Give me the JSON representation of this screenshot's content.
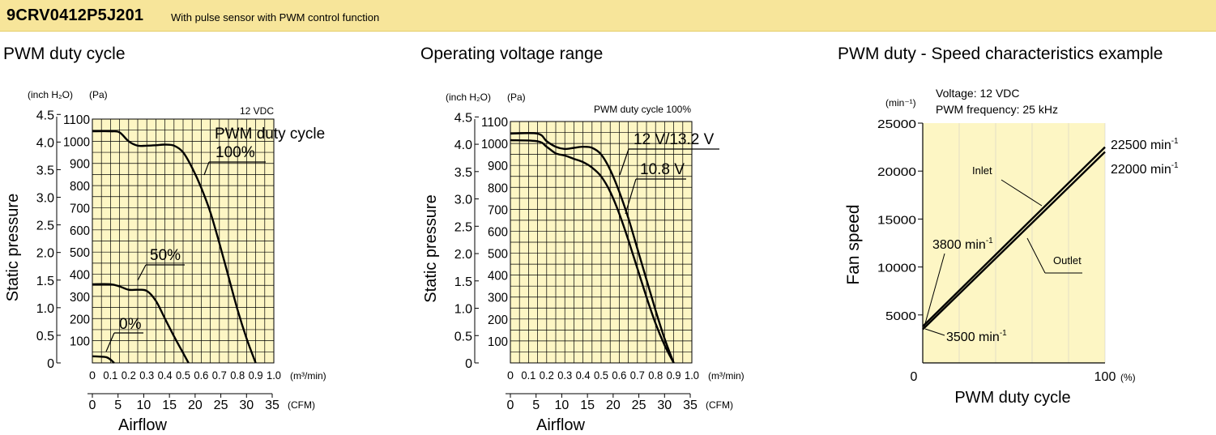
{
  "header": {
    "model": "9CRV0412P5J201",
    "description": "With pulse sensor with PWM control function",
    "background_color": "#f7e59a"
  },
  "sections": {
    "duty_cycle_title": "PWM duty cycle",
    "voltage_title": "Operating voltage range",
    "speed_title": "PWM duty - Speed characteristics example"
  },
  "chart_data": [
    {
      "type": "line",
      "title": "PWM duty cycle",
      "condition": "12 VDC",
      "ylabel": "Static pressure",
      "ylabel_unit_inch": "(inch H₂O)",
      "ylabel_unit_pa": "(Pa)",
      "xlabel": "Airflow",
      "x_unit_m3": "(m³/min)",
      "x_unit_cfm": "(CFM)",
      "xlim": [
        0,
        1.0
      ],
      "ylim": [
        0,
        1100
      ],
      "y_ticks_pa": [
        "100",
        "200",
        "300",
        "400",
        "500",
        "600",
        "700",
        "800",
        "900",
        "1000",
        "1100"
      ],
      "y_ticks_inch": [
        "0",
        "0.5",
        "1.0",
        "1.5",
        "2.0",
        "2.5",
        "3.0",
        "3.5",
        "4.0",
        "4.5"
      ],
      "x_ticks_m3": [
        "0",
        "0.1",
        "0.2",
        "0.3",
        "0.4",
        "0.5",
        "0.6",
        "0.7",
        "0.8",
        "0.9",
        "1.0"
      ],
      "x_ticks_cfm": [
        "0",
        "5",
        "10",
        "15",
        "20",
        "25",
        "30",
        "35"
      ],
      "legend_title": "PWM duty cycle",
      "series": [
        {
          "name": "100%",
          "x": [
            0,
            0.1,
            0.15,
            0.2,
            0.25,
            0.3,
            0.35,
            0.4,
            0.45,
            0.5,
            0.55,
            0.6,
            0.65,
            0.7,
            0.75,
            0.8,
            0.85,
            0.9
          ],
          "y": [
            1045,
            1045,
            1040,
            1000,
            980,
            980,
            982,
            985,
            980,
            950,
            880,
            790,
            680,
            540,
            390,
            240,
            110,
            0
          ]
        },
        {
          "name": "50%",
          "x": [
            0,
            0.1,
            0.15,
            0.2,
            0.25,
            0.3,
            0.35,
            0.4,
            0.45,
            0.5,
            0.53
          ],
          "y": [
            355,
            355,
            345,
            330,
            330,
            325,
            280,
            200,
            120,
            45,
            0
          ]
        },
        {
          "name": "0%",
          "x": [
            0,
            0.05,
            0.08,
            0.1,
            0.12
          ],
          "y": [
            30,
            28,
            25,
            15,
            0
          ]
        }
      ]
    },
    {
      "type": "line",
      "title": "Operating voltage range",
      "condition": "PWM duty cycle 100%",
      "ylabel": "Static pressure",
      "ylabel_unit_inch": "(inch H₂O)",
      "ylabel_unit_pa": "(Pa)",
      "xlabel": "Airflow",
      "x_unit_m3": "(m³/min)",
      "x_unit_cfm": "(CFM)",
      "xlim": [
        0,
        1.0
      ],
      "ylim": [
        0,
        1100
      ],
      "y_ticks_pa": [
        "100",
        "200",
        "300",
        "400",
        "500",
        "600",
        "700",
        "800",
        "900",
        "1000",
        "1100"
      ],
      "y_ticks_inch": [
        "0",
        "0.5",
        "1.0",
        "1.5",
        "2.0",
        "2.5",
        "3.0",
        "3.5",
        "4.0",
        "4.5"
      ],
      "x_ticks_m3": [
        "0",
        "0.1",
        "0.2",
        "0.3",
        "0.4",
        "0.5",
        "0.6",
        "0.7",
        "0.8",
        "0.9",
        "1.0"
      ],
      "x_ticks_cfm": [
        "0",
        "5",
        "10",
        "15",
        "20",
        "25",
        "30",
        "35"
      ],
      "series": [
        {
          "name": "12 V/13.2 V",
          "x": [
            0,
            0.15,
            0.2,
            0.25,
            0.3,
            0.35,
            0.4,
            0.45,
            0.5,
            0.55,
            0.6,
            0.65,
            0.7,
            0.75,
            0.8,
            0.85,
            0.9
          ],
          "y": [
            1045,
            1045,
            1010,
            985,
            975,
            980,
            985,
            980,
            950,
            880,
            780,
            660,
            520,
            380,
            240,
            110,
            0
          ]
        },
        {
          "name": "10.8 V",
          "x": [
            0,
            0.15,
            0.2,
            0.25,
            0.3,
            0.35,
            0.4,
            0.45,
            0.5,
            0.55,
            0.6,
            0.65,
            0.7,
            0.75,
            0.8,
            0.85,
            0.9
          ],
          "y": [
            1015,
            1010,
            985,
            955,
            945,
            930,
            915,
            890,
            850,
            780,
            680,
            560,
            430,
            300,
            180,
            80,
            0
          ]
        }
      ]
    },
    {
      "type": "line",
      "title": "PWM duty - Speed characteristics example",
      "conditions": [
        "Voltage: 12 VDC",
        "PWM frequency: 25 kHz"
      ],
      "ylabel": "Fan speed",
      "y_unit": "(min⁻¹)",
      "xlabel": "PWM duty cycle",
      "x_unit": "(%)",
      "xlim": [
        0,
        100
      ],
      "ylim": [
        0,
        25000
      ],
      "y_ticks": [
        "5000",
        "10000",
        "15000",
        "20000",
        "25000"
      ],
      "x_ticks": [
        "0",
        "100"
      ],
      "series": [
        {
          "name": "Inlet",
          "x": [
            0,
            100
          ],
          "y": [
            3800,
            22500
          ]
        },
        {
          "name": "Outlet",
          "x": [
            0,
            100
          ],
          "y": [
            3500,
            22000
          ]
        }
      ],
      "annotations": {
        "end_inlet": "22500 min",
        "end_outlet": "22000 min",
        "start_inlet": "3800 min",
        "start_outlet": "3500 min",
        "superscript": "-1"
      }
    }
  ]
}
